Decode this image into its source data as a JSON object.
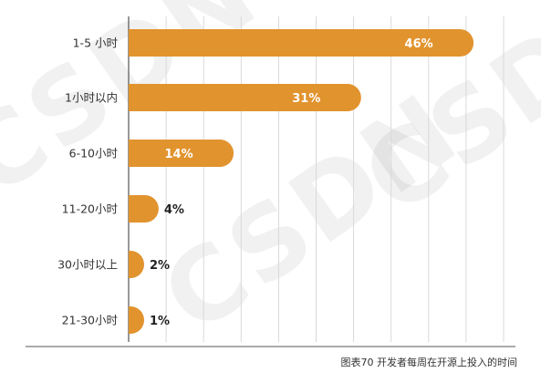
{
  "chart_data": {
    "type": "bar",
    "orientation": "horizontal",
    "categories": [
      "1-5 小时",
      "1小时以内",
      "6-10小时",
      "11-20小时",
      "30小时以上",
      "21-30小时"
    ],
    "values": [
      46,
      31,
      14,
      4,
      2,
      1
    ],
    "value_labels": [
      "46%",
      "31%",
      "14%",
      "4%",
      "2%",
      "1%"
    ],
    "xlim": [
      0,
      50
    ],
    "vertical_grid": true,
    "bar_color": "#E1932E",
    "title": "",
    "xlabel": "",
    "ylabel": ""
  },
  "caption": "图表70  开发者每周在开源上投入的时间",
  "watermark": "CSDN"
}
